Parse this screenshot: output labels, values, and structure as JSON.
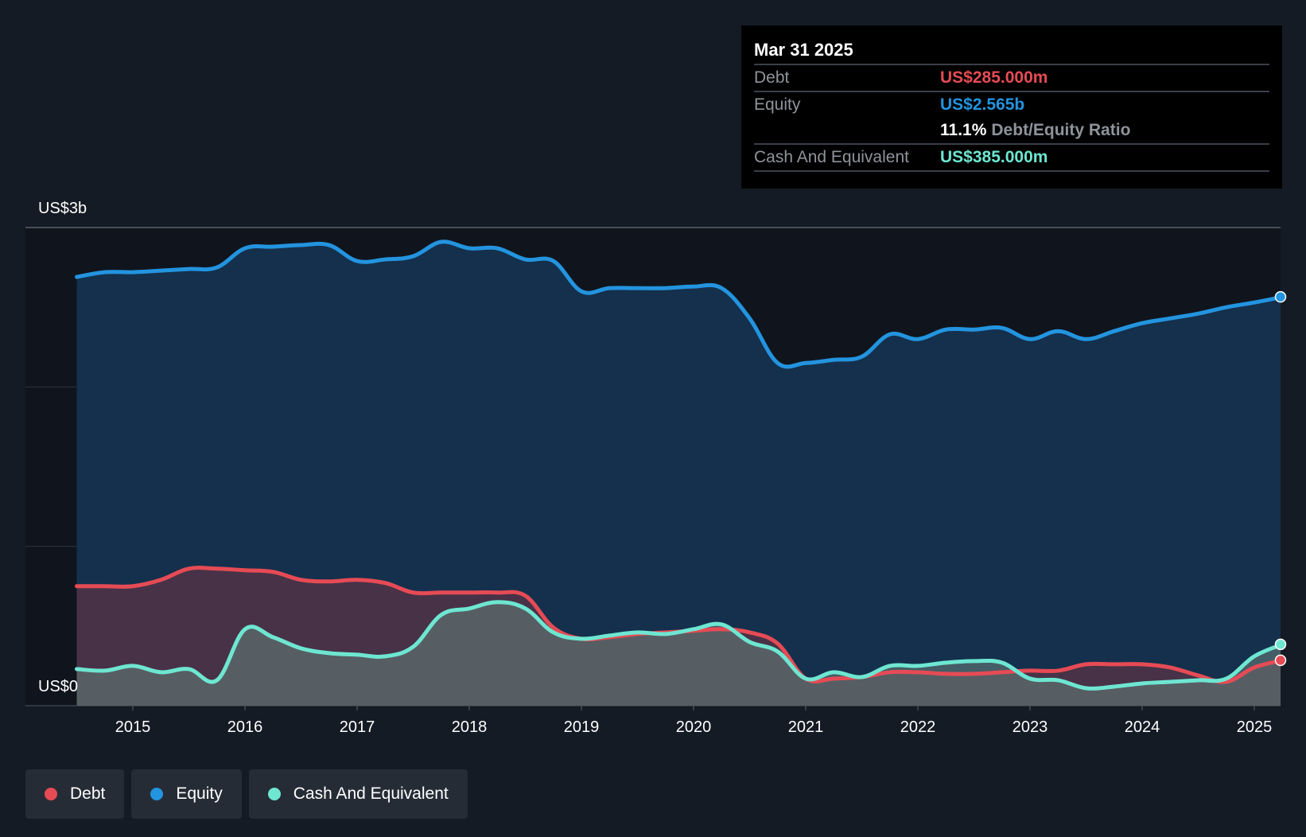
{
  "tooltip": {
    "date": "Mar 31 2025",
    "debt_label": "Debt",
    "debt_value": "US$285.000m",
    "equity_label": "Equity",
    "equity_value": "US$2.565b",
    "ratio_value": "11.1%",
    "ratio_label": "Debt/Equity Ratio",
    "cash_label": "Cash And Equivalent",
    "cash_value": "US$385.000m"
  },
  "axis": {
    "y_top_label": "US$3b",
    "y_bottom_label": "US$0"
  },
  "legend": {
    "items": [
      {
        "label": "Debt",
        "color": "#e64b55"
      },
      {
        "label": "Equity",
        "color": "#2394df"
      },
      {
        "label": "Cash And Equivalent",
        "color": "#6ee6d1"
      }
    ]
  },
  "colors": {
    "background": "#151b24",
    "debt": "#e64b55",
    "equity": "#2394df",
    "cash": "#6ee6d1"
  },
  "chart_data": {
    "type": "area",
    "x_ticks": [
      "2015",
      "2016",
      "2017",
      "2018",
      "2019",
      "2020",
      "2021",
      "2022",
      "2023",
      "2024",
      "2025"
    ],
    "ylim": [
      0,
      3.0
    ],
    "series": [
      {
        "name": "Debt",
        "x": [
          2014.5,
          2014.75,
          2015.0,
          2015.25,
          2015.5,
          2015.75,
          2016.0,
          2016.25,
          2016.5,
          2016.75,
          2017.0,
          2017.25,
          2017.5,
          2017.75,
          2018.0,
          2018.25,
          2018.5,
          2018.75,
          2019.0,
          2019.25,
          2019.5,
          2019.75,
          2020.0,
          2020.25,
          2020.5,
          2020.75,
          2021.0,
          2021.25,
          2021.5,
          2021.75,
          2022.0,
          2022.25,
          2022.5,
          2022.75,
          2023.0,
          2023.25,
          2023.5,
          2023.75,
          2024.0,
          2024.25,
          2024.5,
          2024.75,
          2025.0,
          2025.25
        ],
        "values": [
          0.75,
          0.75,
          0.75,
          0.79,
          0.86,
          0.86,
          0.85,
          0.84,
          0.79,
          0.78,
          0.79,
          0.77,
          0.71,
          0.71,
          0.71,
          0.71,
          0.69,
          0.49,
          0.42,
          0.43,
          0.45,
          0.46,
          0.47,
          0.48,
          0.46,
          0.39,
          0.17,
          0.17,
          0.18,
          0.21,
          0.21,
          0.2,
          0.2,
          0.21,
          0.22,
          0.22,
          0.26,
          0.26,
          0.26,
          0.24,
          0.19,
          0.15,
          0.24,
          0.285
        ]
      },
      {
        "name": "Equity",
        "x": [
          2014.5,
          2014.75,
          2015.0,
          2015.25,
          2015.5,
          2015.75,
          2016.0,
          2016.25,
          2016.5,
          2016.75,
          2017.0,
          2017.25,
          2017.5,
          2017.75,
          2018.0,
          2018.25,
          2018.5,
          2018.75,
          2019.0,
          2019.25,
          2019.5,
          2019.75,
          2020.0,
          2020.25,
          2020.5,
          2020.75,
          2021.0,
          2021.25,
          2021.5,
          2021.75,
          2022.0,
          2022.25,
          2022.5,
          2022.75,
          2023.0,
          2023.25,
          2023.5,
          2023.75,
          2024.0,
          2024.25,
          2024.5,
          2024.75,
          2025.0,
          2025.25
        ],
        "values": [
          2.69,
          2.72,
          2.72,
          2.73,
          2.74,
          2.75,
          2.87,
          2.88,
          2.89,
          2.89,
          2.79,
          2.8,
          2.82,
          2.91,
          2.87,
          2.87,
          2.8,
          2.79,
          2.6,
          2.62,
          2.62,
          2.62,
          2.63,
          2.62,
          2.43,
          2.15,
          2.15,
          2.17,
          2.19,
          2.33,
          2.3,
          2.36,
          2.36,
          2.37,
          2.3,
          2.35,
          2.3,
          2.35,
          2.4,
          2.43,
          2.46,
          2.5,
          2.53,
          2.565
        ]
      },
      {
        "name": "Cash And Equivalent",
        "x": [
          2014.5,
          2014.75,
          2015.0,
          2015.25,
          2015.5,
          2015.75,
          2016.0,
          2016.25,
          2016.5,
          2016.75,
          2017.0,
          2017.25,
          2017.5,
          2017.75,
          2018.0,
          2018.25,
          2018.5,
          2018.75,
          2019.0,
          2019.25,
          2019.5,
          2019.75,
          2020.0,
          2020.25,
          2020.5,
          2020.75,
          2021.0,
          2021.25,
          2021.5,
          2021.75,
          2022.0,
          2022.25,
          2022.5,
          2022.75,
          2023.0,
          2023.25,
          2023.5,
          2023.75,
          2024.0,
          2024.25,
          2024.5,
          2024.75,
          2025.0,
          2025.25
        ],
        "values": [
          0.23,
          0.22,
          0.25,
          0.21,
          0.23,
          0.16,
          0.48,
          0.43,
          0.36,
          0.33,
          0.32,
          0.31,
          0.37,
          0.57,
          0.61,
          0.65,
          0.61,
          0.46,
          0.42,
          0.44,
          0.46,
          0.45,
          0.48,
          0.51,
          0.4,
          0.34,
          0.17,
          0.21,
          0.18,
          0.25,
          0.25,
          0.27,
          0.28,
          0.27,
          0.17,
          0.16,
          0.11,
          0.12,
          0.14,
          0.15,
          0.16,
          0.17,
          0.31,
          0.385
        ]
      }
    ]
  }
}
